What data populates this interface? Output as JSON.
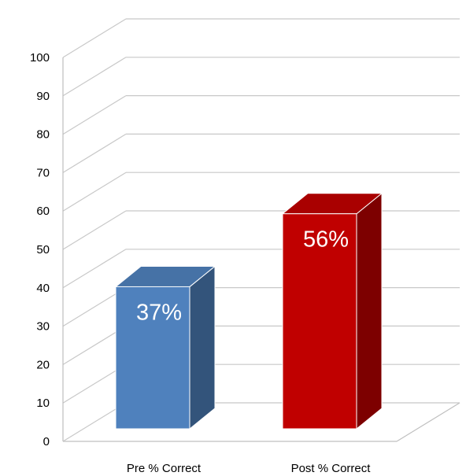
{
  "chart_data": {
    "type": "bar",
    "style": "3d-column",
    "categories": [
      "Pre % Correct",
      "Post % Correct"
    ],
    "values": [
      37,
      56
    ],
    "data_labels": [
      "37%",
      "56%"
    ],
    "colors": [
      "#4f81bd",
      "#c00000"
    ],
    "ylim": [
      0,
      100
    ],
    "yticks": [
      0,
      10,
      20,
      30,
      40,
      50,
      60,
      70,
      80,
      90,
      100
    ],
    "grid": true,
    "legend": "none"
  }
}
